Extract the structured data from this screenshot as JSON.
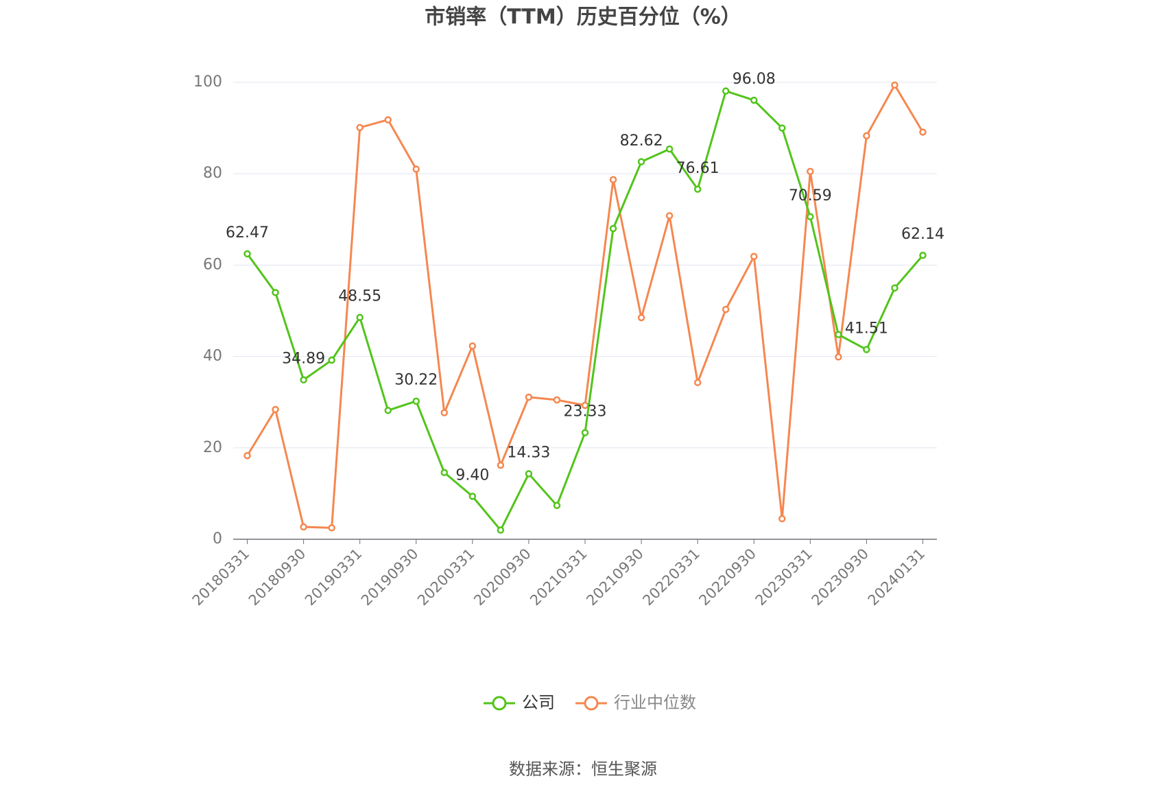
{
  "chart_data": {
    "type": "line",
    "title": "市销率（TTM）历史百分位（%）",
    "source": "数据来源：恒生聚源",
    "categories": [
      "20180331",
      null,
      "20180930",
      null,
      "20190331",
      null,
      "20190930",
      null,
      "20200331",
      null,
      "20200930",
      null,
      "20210331",
      null,
      "20210930",
      null,
      "20220331",
      null,
      "20220930",
      null,
      "20230331",
      null,
      "20230930",
      null,
      "20240131"
    ],
    "ylim": [
      0,
      100
    ],
    "yticks": [
      0,
      20,
      40,
      60,
      80,
      100
    ],
    "grid": true,
    "series": [
      {
        "name": "公司",
        "color": "#52c41a",
        "values": [
          62.47,
          54,
          34.89,
          39.2,
          48.55,
          28.2,
          30.22,
          14.6,
          9.4,
          2,
          14.33,
          7.4,
          23.33,
          68,
          82.62,
          85.4,
          76.61,
          98.1,
          96.08,
          90,
          70.59,
          44.8,
          41.51,
          55,
          62.14
        ],
        "value_labels": [
          "62.47",
          null,
          "34.89",
          null,
          "48.55",
          null,
          "30.22",
          null,
          "9.40",
          null,
          "14.33",
          null,
          "23.33",
          null,
          "82.62",
          null,
          "76.61",
          null,
          "96.08",
          null,
          "70.59",
          null,
          "41.51",
          null,
          "62.14"
        ]
      },
      {
        "name": "行业中位数",
        "color": "#f5874f",
        "values": [
          18.3,
          28.4,
          2.7,
          2.5,
          90.1,
          91.8,
          81,
          27.7,
          42.3,
          16.2,
          31.1,
          30.5,
          29.3,
          78.7,
          48.5,
          70.8,
          34.3,
          50.3,
          61.9,
          4.5,
          80.5,
          39.9,
          88.3,
          99.4,
          89.1
        ]
      }
    ]
  }
}
